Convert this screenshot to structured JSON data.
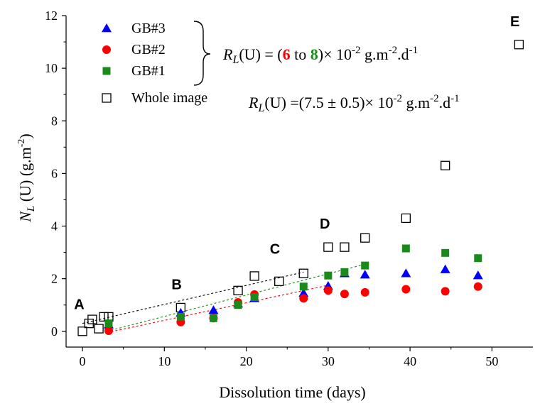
{
  "chart_data": {
    "type": "scatter",
    "xlabel": "Dissolution time (days)",
    "ylabel": {
      "main": "N",
      "sub": "L",
      "rest": " (U) (g.m",
      "sup": "-2",
      "close": ")"
    },
    "xlim": [
      -2,
      55
    ],
    "ylim": [
      -0.6,
      12
    ],
    "x_ticks": [
      0,
      10,
      20,
      30,
      40,
      50
    ],
    "y_ticks": [
      0,
      2,
      4,
      6,
      8,
      10,
      12
    ],
    "grid": false,
    "legend_position": "top-left",
    "series": [
      {
        "name": "GB#3",
        "marker": "triangle",
        "color": "#0000ff",
        "x": [
          3.2,
          12,
          16,
          19,
          21,
          27,
          30,
          32,
          34.5,
          39.5,
          44.3,
          48.3
        ],
        "y": [
          0.25,
          0.7,
          0.8,
          1.05,
          1.25,
          1.45,
          1.72,
          2.2,
          2.15,
          2.2,
          2.35,
          2.12
        ]
      },
      {
        "name": "GB#2",
        "marker": "circle",
        "color": "#ff0000",
        "x": [
          3.2,
          12,
          16,
          19,
          21,
          27,
          30,
          32,
          34.5,
          39.5,
          44.3,
          48.3
        ],
        "y": [
          0.02,
          0.35,
          0.5,
          1.1,
          1.4,
          1.25,
          1.55,
          1.42,
          1.48,
          1.6,
          1.52,
          1.7
        ]
      },
      {
        "name": "GB#1",
        "marker": "square-filled",
        "color": "#1a8a1a",
        "x": [
          3.2,
          12,
          16,
          19,
          21,
          27,
          30,
          32,
          34.5,
          39.5,
          44.3,
          48.3
        ],
        "y": [
          0.3,
          0.55,
          0.5,
          1.0,
          1.3,
          1.7,
          2.12,
          2.25,
          2.5,
          3.15,
          2.98,
          2.78
        ]
      },
      {
        "name": "Whole image",
        "marker": "square-open",
        "color": "#000000",
        "x": [
          0,
          0.8,
          1.2,
          2.0,
          2.6,
          3.2,
          12,
          19,
          21,
          24,
          27,
          30,
          32,
          34.5,
          39.5,
          44.3,
          53.3
        ],
        "y": [
          0.0,
          0.3,
          0.45,
          0.1,
          0.55,
          0.55,
          0.9,
          1.55,
          2.1,
          1.9,
          2.2,
          3.2,
          3.2,
          3.55,
          4.3,
          6.3,
          10.9
        ]
      }
    ],
    "trendlines": [
      {
        "color": "#000000",
        "x": [
          0,
          27
        ],
        "y": [
          0.3,
          2.25
        ]
      },
      {
        "color": "#ff0000",
        "x": [
          3,
          30
        ],
        "y": [
          -0.05,
          1.75
        ]
      },
      {
        "color": "#1a8a1a",
        "x": [
          3,
          34.5
        ],
        "y": [
          0.0,
          2.55
        ]
      }
    ],
    "annotations": [
      {
        "text": "A",
        "x": -0.4,
        "y": 0.85
      },
      {
        "text": "B",
        "x": 11.5,
        "y": 1.6
      },
      {
        "text": "C",
        "x": 23.5,
        "y": 2.95
      },
      {
        "text": "D",
        "x": 29.6,
        "y": 3.9
      },
      {
        "text": "E",
        "x": 52.8,
        "y": 11.6
      }
    ],
    "formula_group": {
      "prefix_main": "R",
      "prefix_sub": "L",
      "open": "(U) = (",
      "low": "6",
      "to": " to ",
      "high": "8",
      "close": ")× 10",
      "exp": "-2",
      "units_a": " g.m",
      "units_exp": "-2",
      "units_b": ".d",
      "units_exp2": "-1",
      "low_color": "#ff0000",
      "high_color": "#1a8a1a"
    },
    "formula_whole": {
      "prefix_main": "R",
      "prefix_sub": "L",
      "body": "(U) =(7.5 ± 0.5)× 10",
      "exp": "-2",
      "units_a": " g.m",
      "units_exp": "-2",
      "units_b": ".d",
      "units_exp2": "-1"
    }
  }
}
